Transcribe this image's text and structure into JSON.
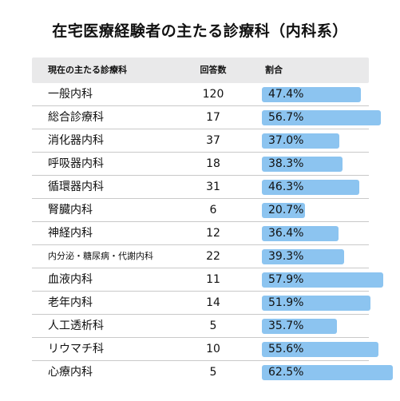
{
  "chart_data": {
    "type": "table",
    "title": "在宅医療経験者の主たる診療科（内科系）",
    "columns": [
      "現在の主たる診療科",
      "回答数",
      "割合"
    ],
    "rows": [
      {
        "department": "一般内科",
        "count": 120,
        "ratio": 47.4,
        "ratio_label": "47.4%"
      },
      {
        "department": "総合診療科",
        "count": 17,
        "ratio": 56.7,
        "ratio_label": "56.7%"
      },
      {
        "department": "消化器内科",
        "count": 37,
        "ratio": 37.0,
        "ratio_label": "37.0%"
      },
      {
        "department": "呼吸器内科",
        "count": 18,
        "ratio": 38.3,
        "ratio_label": "38.3%"
      },
      {
        "department": "循環器内科",
        "count": 31,
        "ratio": 46.3,
        "ratio_label": "46.3%"
      },
      {
        "department": "腎臓内科",
        "count": 6,
        "ratio": 20.7,
        "ratio_label": "20.7%"
      },
      {
        "department": "神経内科",
        "count": 12,
        "ratio": 36.4,
        "ratio_label": "36.4%"
      },
      {
        "department": "内分泌・糖尿病・代謝内科",
        "count": 22,
        "ratio": 39.3,
        "ratio_label": "39.3%"
      },
      {
        "department": "血液内科",
        "count": 11,
        "ratio": 57.9,
        "ratio_label": "57.9%"
      },
      {
        "department": "老年内科",
        "count": 14,
        "ratio": 51.9,
        "ratio_label": "51.9%"
      },
      {
        "department": "人工透析科",
        "count": 5,
        "ratio": 35.7,
        "ratio_label": "35.7%"
      },
      {
        "department": "リウマチ科",
        "count": 10,
        "ratio": 55.6,
        "ratio_label": "55.6%"
      },
      {
        "department": "心療内科",
        "count": 5,
        "ratio": 62.5,
        "ratio_label": "62.5%"
      }
    ],
    "bar_color": "#8cc4f0",
    "header_background": "#e9e9ea"
  }
}
